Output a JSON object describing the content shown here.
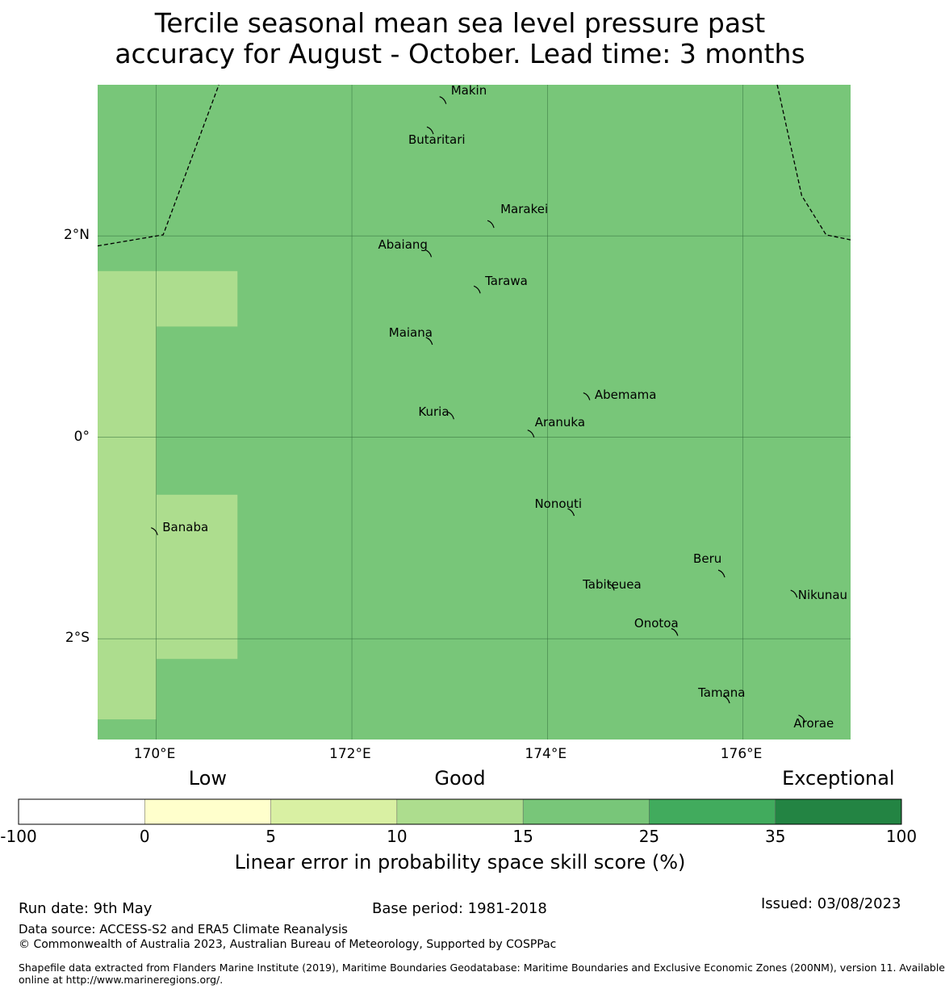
{
  "title": {
    "line1": "Tercile seasonal mean sea level pressure past",
    "line2": "accuracy for August - October. Lead time: 3 months"
  },
  "map": {
    "lon_range": [
      169.4,
      177.1
    ],
    "lat_range": [
      -3.0,
      3.5
    ],
    "x_ticks": [
      {
        "value": 170,
        "label": "170°E"
      },
      {
        "value": 172,
        "label": "172°E"
      },
      {
        "value": 174,
        "label": "174°E"
      },
      {
        "value": 176,
        "label": "176°E"
      }
    ],
    "y_ticks": [
      {
        "value": 2,
        "label": "2°N"
      },
      {
        "value": 0,
        "label": "0°"
      },
      {
        "value": -2,
        "label": "2°S"
      }
    ],
    "background_class": "15-25",
    "skill_cells": [
      {
        "lon": [
          169.4,
          170.0
        ],
        "lat": [
          -2.8,
          1.65
        ],
        "class": "10-15"
      },
      {
        "lon": [
          170.0,
          170.83
        ],
        "lat": [
          1.1,
          1.65
        ],
        "class": "10-15"
      },
      {
        "lon": [
          170.0,
          170.83
        ],
        "lat": [
          -2.2,
          -0.57
        ],
        "class": "10-15"
      }
    ],
    "islands": [
      {
        "name": "Makin",
        "lon": 172.93,
        "lat": 3.35
      },
      {
        "name": "Butaritari",
        "lon": 172.8,
        "lat": 3.05
      },
      {
        "name": "Marakei",
        "lon": 173.42,
        "lat": 2.12
      },
      {
        "name": "Abaiang",
        "lon": 172.78,
        "lat": 1.83
      },
      {
        "name": "Tarawa",
        "lon": 173.28,
        "lat": 1.47
      },
      {
        "name": "Maiana",
        "lon": 172.79,
        "lat": 0.96
      },
      {
        "name": "Abemama",
        "lon": 174.4,
        "lat": 0.41
      },
      {
        "name": "Kuria",
        "lon": 173.01,
        "lat": 0.22
      },
      {
        "name": "Aranuka",
        "lon": 173.83,
        "lat": 0.04
      },
      {
        "name": "Banaba",
        "lon": 169.98,
        "lat": -0.93
      },
      {
        "name": "Nonouti",
        "lon": 174.24,
        "lat": -0.74
      },
      {
        "name": "Beru",
        "lon": 175.78,
        "lat": -1.35
      },
      {
        "name": "Tabiteuea",
        "lon": 174.65,
        "lat": -1.48
      },
      {
        "name": "Nikunau",
        "lon": 176.52,
        "lat": -1.55
      },
      {
        "name": "Onotoa",
        "lon": 175.3,
        "lat": -1.93
      },
      {
        "name": "Tamana",
        "lon": 175.83,
        "lat": -2.6
      },
      {
        "name": "Arorae",
        "lon": 176.6,
        "lat": -2.79
      }
    ],
    "eez_boundaries": [
      [
        [
          169.4,
          1.9
        ],
        [
          170.07,
          2.01
        ],
        [
          170.64,
          3.5
        ]
      ],
      [
        [
          176.35,
          3.5
        ],
        [
          176.6,
          2.4
        ],
        [
          176.85,
          2.01
        ],
        [
          177.1,
          1.96
        ]
      ]
    ]
  },
  "colorbar": {
    "categories": [
      {
        "label": "Low",
        "anchor": 1
      },
      {
        "label": "Good",
        "anchor": 3
      },
      {
        "label": "Exceptional",
        "anchor": 6
      }
    ],
    "ticks": [
      "-100",
      "0",
      "5",
      "10",
      "15",
      "25",
      "35",
      "100"
    ],
    "bins": [
      {
        "range": "-100-0",
        "color": "#ffffff"
      },
      {
        "range": "0-5",
        "color": "#ffffcc"
      },
      {
        "range": "5-10",
        "color": "#d9f0a3"
      },
      {
        "range": "10-15",
        "color": "#addd8e"
      },
      {
        "range": "15-25",
        "color": "#78c679"
      },
      {
        "range": "25-35",
        "color": "#41ab5d"
      },
      {
        "range": "35-100",
        "color": "#238443"
      }
    ],
    "label": "Linear error in probability space skill score (%)"
  },
  "footer": {
    "run_date": "Run date: 9th May",
    "base_period": "Base period: 1981-2018",
    "issued": "Issued: 03/08/2023",
    "data_source": "Data source: ACCESS-S2 and ERA5 Climate Reanalysis",
    "copyright": "© Commonwealth of Australia 2023, Australian Bureau of Meteorology, Supported by COSPPac",
    "shapefile_line1": "Shapefile data extracted from Flanders Marine Institute (2019), Maritime Boundaries Geodatabase: Maritime Boundaries and Exclusive Economic Zones (200NM), version 11. Available",
    "shapefile_line2": "online at http://www.marineregions.org/."
  }
}
